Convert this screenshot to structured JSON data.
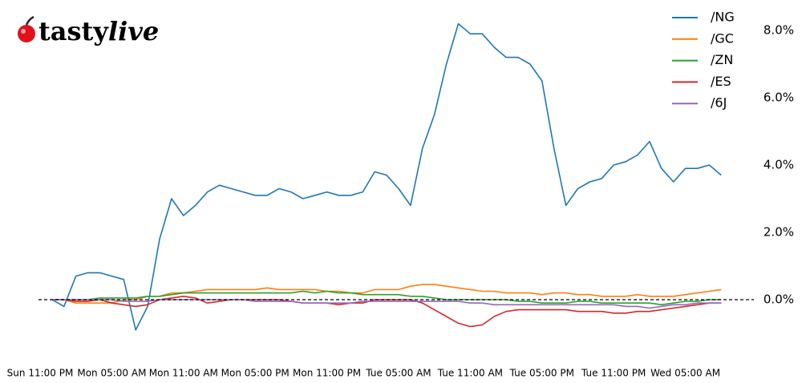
{
  "logo": {
    "parts": [
      "tasty",
      "live"
    ]
  },
  "chart_data": {
    "type": "line",
    "categories": [
      "Sun 11:00 PM",
      null,
      null,
      null,
      null,
      null,
      "Mon 05:00 AM",
      null,
      null,
      null,
      null,
      null,
      "Mon 11:00 AM",
      null,
      null,
      null,
      null,
      null,
      "Mon 05:00 PM",
      null,
      null,
      null,
      null,
      null,
      "Mon 11:00 PM",
      null,
      null,
      null,
      null,
      null,
      "Tue 05:00 AM",
      null,
      null,
      null,
      null,
      null,
      "Tue 11:00 AM",
      null,
      null,
      null,
      null,
      null,
      "Tue 05:00 PM",
      null,
      null,
      null,
      null,
      null,
      "Tue 11:00 PM",
      null,
      null,
      null,
      null,
      null,
      "Wed 05:00 AM",
      null,
      null,
      null
    ],
    "series": [
      {
        "name": "/NG",
        "color": "#1f77b4",
        "values": [
          null,
          0.0,
          -0.2,
          0.7,
          0.8,
          0.8,
          0.7,
          0.6,
          -0.9,
          -0.2,
          1.8,
          3.0,
          2.5,
          2.8,
          3.2,
          3.4,
          3.3,
          3.2,
          3.1,
          3.1,
          3.3,
          3.2,
          3.0,
          3.1,
          3.2,
          3.1,
          3.1,
          3.2,
          3.8,
          3.7,
          3.3,
          2.8,
          4.5,
          5.5,
          7.0,
          8.2,
          7.9,
          7.9,
          7.5,
          7.2,
          7.2,
          7.0,
          6.5,
          4.5,
          2.8,
          3.3,
          3.5,
          3.6,
          4.0,
          4.1,
          4.3,
          4.7,
          3.9,
          3.5,
          3.9,
          3.9,
          4.0,
          3.7
        ]
      },
      {
        "name": "/GC",
        "color": "#ff7f0e",
        "values": [
          null,
          0.0,
          0.0,
          -0.1,
          -0.1,
          -0.1,
          -0.1,
          0.0,
          0.0,
          0.1,
          0.1,
          0.2,
          0.2,
          0.25,
          0.3,
          0.3,
          0.3,
          0.3,
          0.3,
          0.35,
          0.3,
          0.3,
          0.3,
          0.3,
          0.25,
          0.25,
          0.2,
          0.2,
          0.3,
          0.3,
          0.3,
          0.4,
          0.45,
          0.45,
          0.4,
          0.35,
          0.3,
          0.25,
          0.25,
          0.2,
          0.2,
          0.2,
          0.15,
          0.2,
          0.2,
          0.15,
          0.15,
          0.1,
          0.1,
          0.1,
          0.15,
          0.1,
          0.1,
          0.1,
          0.15,
          0.2,
          0.25,
          0.3
        ]
      },
      {
        "name": "/ZN",
        "color": "#2ca02c",
        "values": [
          null,
          0.0,
          0.0,
          0.0,
          0.0,
          0.05,
          0.05,
          0.05,
          0.05,
          0.1,
          0.1,
          0.15,
          0.2,
          0.2,
          0.2,
          0.2,
          0.2,
          0.2,
          0.2,
          0.2,
          0.2,
          0.2,
          0.25,
          0.2,
          0.25,
          0.2,
          0.2,
          0.15,
          0.15,
          0.15,
          0.15,
          0.1,
          0.1,
          0.05,
          0.0,
          0.0,
          0.0,
          0.0,
          0.0,
          0.0,
          -0.05,
          -0.05,
          -0.1,
          -0.1,
          -0.1,
          -0.05,
          -0.05,
          -0.1,
          -0.1,
          -0.1,
          -0.1,
          -0.1,
          -0.15,
          -0.1,
          -0.05,
          -0.05,
          0.0,
          0.0
        ]
      },
      {
        "name": "/ES",
        "color": "#d62728",
        "values": [
          null,
          0.0,
          0.0,
          -0.05,
          -0.05,
          0.0,
          -0.1,
          -0.15,
          -0.2,
          -0.15,
          0.0,
          0.05,
          0.1,
          0.05,
          -0.1,
          -0.05,
          0.0,
          0.0,
          0.0,
          0.0,
          0.0,
          -0.05,
          -0.1,
          -0.1,
          -0.1,
          -0.15,
          -0.1,
          -0.1,
          0.0,
          0.0,
          0.0,
          0.0,
          -0.1,
          -0.3,
          -0.5,
          -0.7,
          -0.8,
          -0.75,
          -0.5,
          -0.35,
          -0.3,
          -0.3,
          -0.3,
          -0.3,
          -0.3,
          -0.35,
          -0.35,
          -0.35,
          -0.4,
          -0.4,
          -0.35,
          -0.35,
          -0.3,
          -0.25,
          -0.2,
          -0.15,
          -0.1,
          -0.1
        ]
      },
      {
        "name": "/6J",
        "color": "#9467bd",
        "values": [
          null,
          0.0,
          0.0,
          0.0,
          0.0,
          0.0,
          0.0,
          -0.05,
          -0.05,
          -0.05,
          0.0,
          0.0,
          0.0,
          0.0,
          0.0,
          0.0,
          0.0,
          0.0,
          -0.05,
          -0.05,
          -0.05,
          -0.05,
          -0.1,
          -0.1,
          -0.1,
          -0.1,
          -0.1,
          -0.05,
          -0.05,
          -0.05,
          -0.05,
          -0.05,
          -0.05,
          -0.05,
          -0.05,
          -0.05,
          -0.1,
          -0.1,
          -0.15,
          -0.15,
          -0.15,
          -0.15,
          -0.15,
          -0.15,
          -0.15,
          -0.15,
          -0.15,
          -0.15,
          -0.15,
          -0.2,
          -0.2,
          -0.25,
          -0.2,
          -0.15,
          -0.15,
          -0.1,
          -0.1,
          -0.1
        ]
      }
    ],
    "ylim": [
      -1.6,
      8.6
    ],
    "yticks": [
      {
        "value": 0,
        "label": "0.0%"
      },
      {
        "value": 2,
        "label": "2.0%"
      },
      {
        "value": 4,
        "label": "4.0%"
      },
      {
        "value": 6,
        "label": "6.0%"
      },
      {
        "value": 8,
        "label": "8.0%"
      }
    ],
    "reference_line": 0,
    "legend": "upper right"
  }
}
